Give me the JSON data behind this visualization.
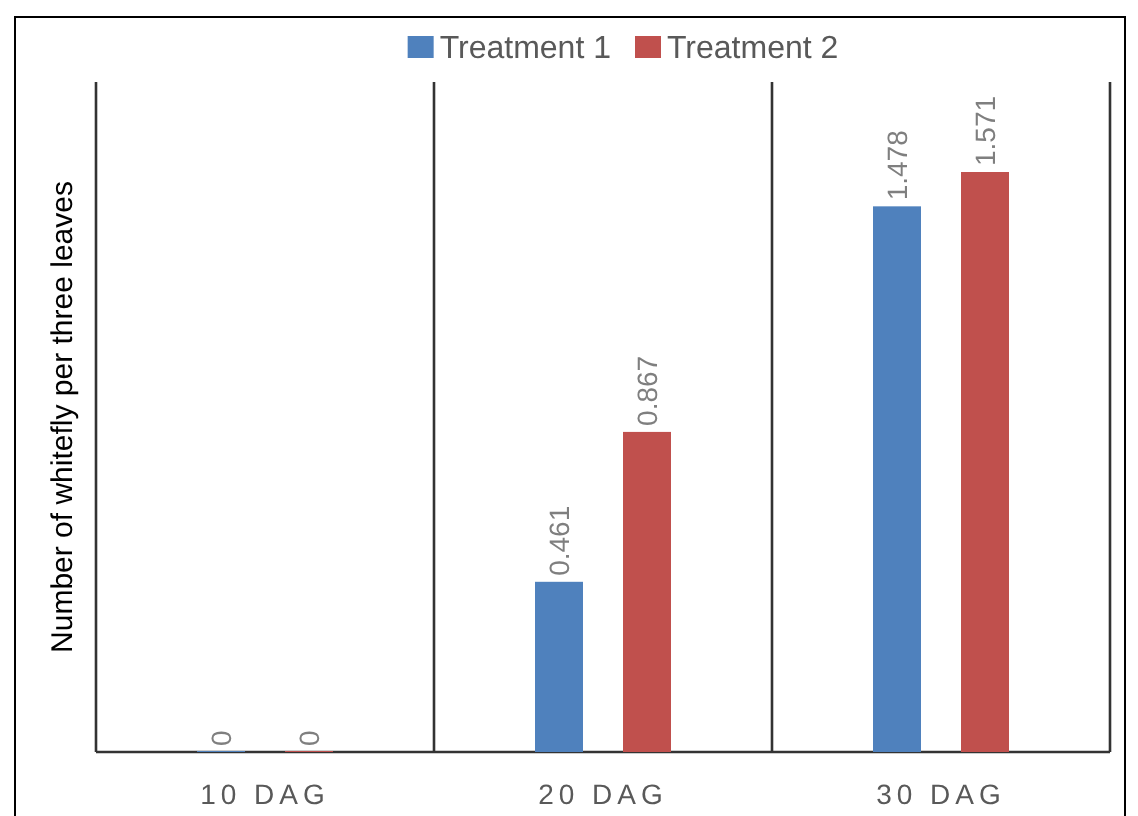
{
  "chart_data": {
    "type": "bar",
    "ylabel": "Number of whitefly per three leaves",
    "categories": [
      "10 DAG",
      "20 DAG",
      "30 DAG"
    ],
    "series": [
      {
        "name": "Treatment 1",
        "color": "#4f81bd",
        "values": [
          0,
          0.461,
          1.478
        ]
      },
      {
        "name": "Treatment 2",
        "color": "#c0504d",
        "values": [
          0,
          0.867,
          1.571
        ]
      }
    ],
    "data_labels": true,
    "grid": "x",
    "legend": "top"
  }
}
